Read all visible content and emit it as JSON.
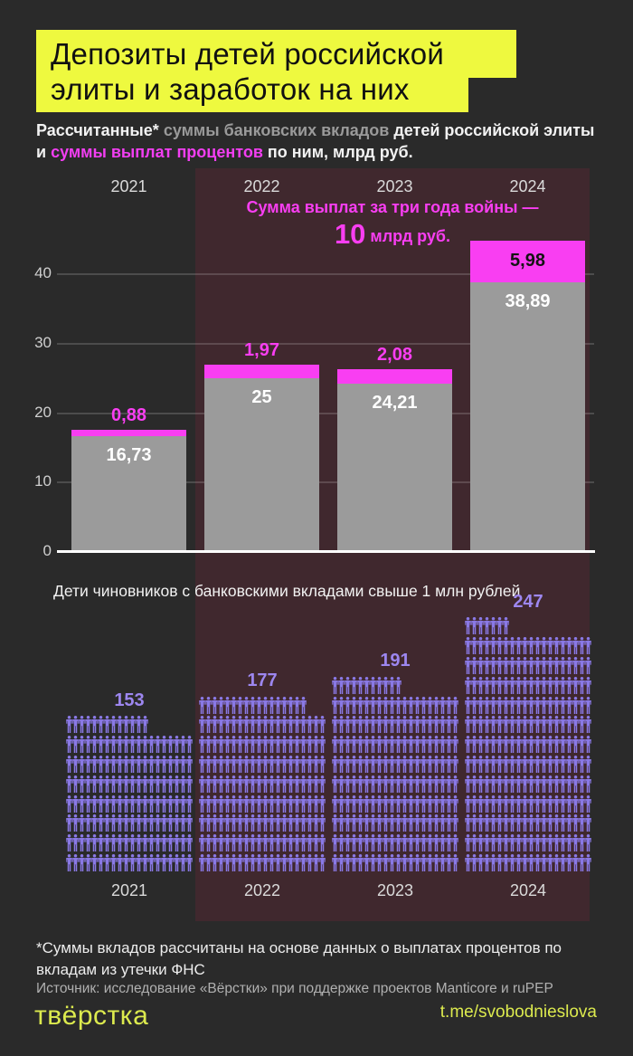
{
  "title": {
    "line1": "Депозиты детей российской",
    "line2": "элиты и заработок на них"
  },
  "subtitle": {
    "segments": [
      {
        "text": "Рассчитанные* "
      },
      {
        "text": "суммы банковских вкладов "
      },
      {
        "text": "детей российской элиты и "
      },
      {
        "text": "суммы выплат процентов "
      },
      {
        "text": "по ним, млрд руб."
      }
    ]
  },
  "chart_data": [
    {
      "type": "bar",
      "stacked": true,
      "title": "Рассчитанные суммы банковских вкладов детей российской элиты и суммы выплат процентов по ним, млрд руб.",
      "categories": [
        "2021",
        "2022",
        "2023",
        "2024"
      ],
      "series": [
        {
          "name": "суммы банковских вкладов",
          "color": "#9b9b9b",
          "values": [
            16.73,
            25,
            24.21,
            38.89
          ],
          "labels": [
            "16,73",
            "25",
            "24,21",
            "38,89"
          ]
        },
        {
          "name": "суммы выплат процентов",
          "color": "#f93ef2",
          "values": [
            0.88,
            1.97,
            2.08,
            5.98
          ],
          "labels": [
            "0,88",
            "1,97",
            "2,08",
            "5,98"
          ]
        }
      ],
      "yticks": [
        0,
        10,
        20,
        30,
        40
      ],
      "ylim": [
        0,
        45
      ],
      "grid": true,
      "annotation": {
        "line1": "Сумма выплат за три года войны —",
        "big": "10",
        "suffix": " млрд руб."
      }
    },
    {
      "type": "pictogram",
      "title": "Дети чиновников с банковскими вкладами свыше 1 млн рублей",
      "categories": [
        "2021",
        "2022",
        "2023",
        "2024"
      ],
      "values": [
        153,
        177,
        191,
        247
      ],
      "icons_per_row": 20,
      "icon": "person-icon",
      "icon_color": "#8a79e6"
    }
  ],
  "footer": {
    "footnote": "*Суммы вкладов рассчитаны на основе данных о выплатах процентов по вкладам из утечки ФНС",
    "source": "Источник: исследование «Вёрстки» при поддержке проектов Manticore и ruPEP",
    "logo": "твёрстка",
    "telegram": "t.me/svobodnieslova"
  },
  "colors": {
    "background": "#2a2a2a",
    "war_band": "#40282e",
    "accent_yellow": "#eef93f",
    "accent_magenta": "#f93ef2",
    "bar_gray": "#9b9b9b",
    "person_purple": "#8a79e6"
  }
}
